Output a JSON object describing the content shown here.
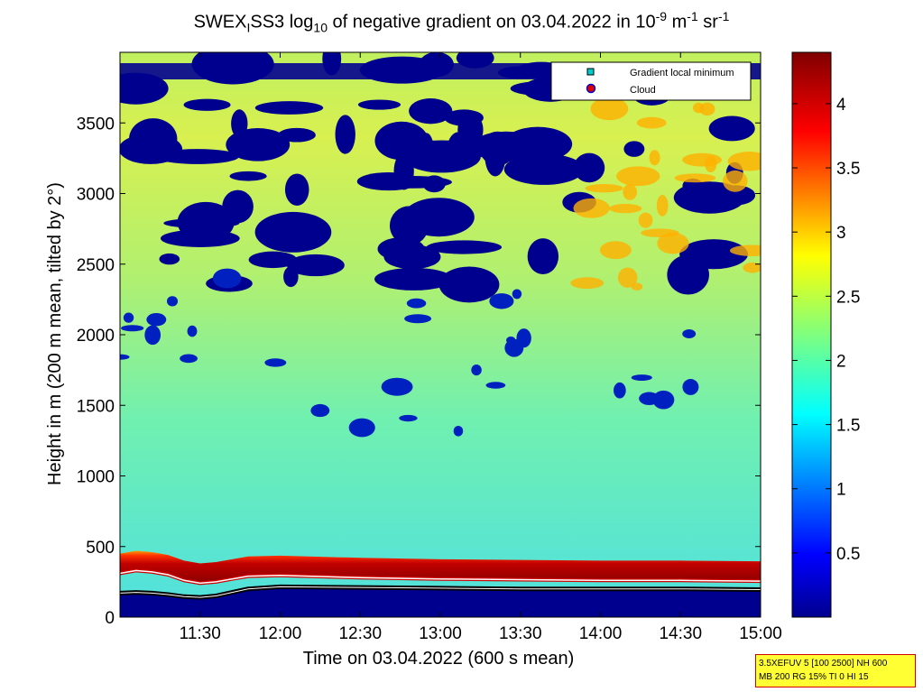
{
  "title": {
    "prefix": "SWEX",
    "sub1": "I",
    "mid": "SS3 log",
    "sub2": "10",
    "text": " of negative gradient on 03.04.2022 in 10",
    "sup1": "-9",
    "unit1": " m",
    "sup2": "-1",
    "unit2": " sr",
    "sup3": "-1"
  },
  "chart_data": {
    "type": "heatmap",
    "xlabel": "Time on 03.04.2022 (600 s mean)",
    "ylabel": "Height in m (200 m mean, tilted by 2°)",
    "x_ticks": [
      "11:30",
      "12:00",
      "12:30",
      "13:00",
      "13:30",
      "14:00",
      "14:30",
      "15:00"
    ],
    "x_tick_hours": [
      11.5,
      12.0,
      12.5,
      13.0,
      13.5,
      14.0,
      14.5,
      15.0
    ],
    "xlim_hours": [
      11.0,
      15.0
    ],
    "y_ticks": [
      0,
      500,
      1000,
      1500,
      2000,
      2500,
      3000,
      3500
    ],
    "ylim": [
      0,
      4000
    ],
    "colorbar": {
      "range": [
        0,
        4.4
      ],
      "ticks": [
        0.5,
        1,
        1.5,
        2,
        2.5,
        3,
        3.5,
        4
      ],
      "tick_labels": [
        "0.5",
        "1",
        "1.5",
        "2",
        "2.5",
        "3",
        "3.5",
        "4"
      ],
      "colormap": "jet"
    },
    "legend": {
      "placement": "top-right",
      "entries": [
        {
          "label": "Gradient local minimum",
          "marker": "square",
          "color": "#00cccc"
        },
        {
          "label": "Cloud",
          "marker": "circle",
          "color": "#dd0000"
        }
      ]
    },
    "gradient_local_minimum_height_m": {
      "x_hours": [
        11.0,
        11.1,
        11.2,
        11.3,
        11.4,
        11.5,
        11.6,
        11.7,
        11.8,
        12.0,
        12.5,
        13.0,
        13.5,
        14.0,
        14.5,
        15.0
      ],
      "y": [
        170,
        175,
        170,
        160,
        145,
        140,
        150,
        175,
        200,
        215,
        210,
        205,
        200,
        200,
        200,
        195
      ]
    },
    "cloud_base_height_m": {
      "x_hours": [
        11.0,
        11.1,
        11.2,
        11.3,
        11.4,
        11.5,
        11.6,
        11.7,
        11.8,
        12.0,
        12.5,
        13.0,
        13.5,
        14.0,
        14.5,
        15.0
      ],
      "y": [
        310,
        330,
        320,
        300,
        260,
        240,
        250,
        270,
        290,
        295,
        280,
        270,
        265,
        260,
        260,
        255
      ]
    }
  },
  "info_box": {
    "line1": "3.5XEFUV 5 [100 2500] NH 600",
    "line2": "MB 200 RG 15% TI 0 HI 15"
  }
}
